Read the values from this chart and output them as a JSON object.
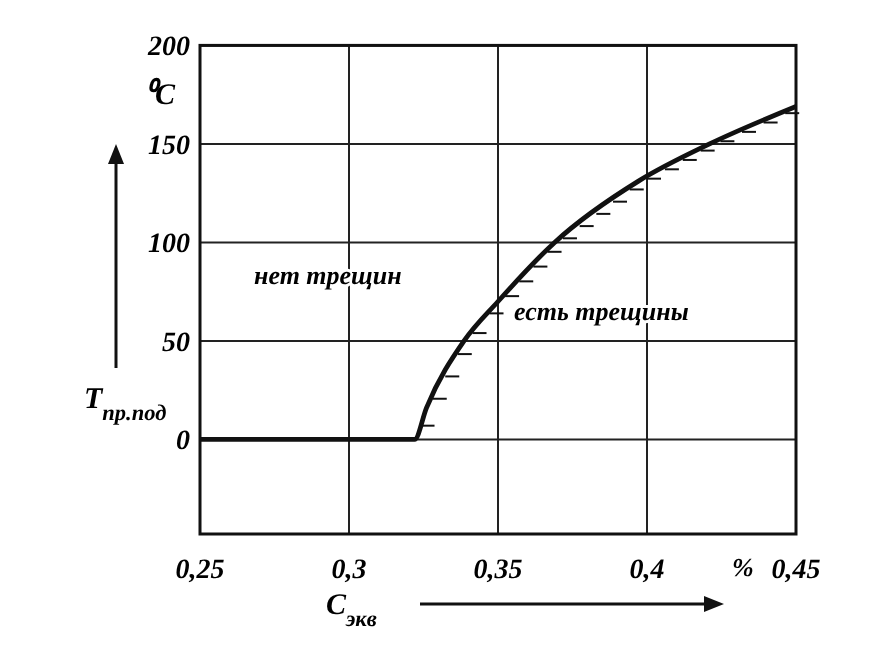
{
  "chart_data": {
    "type": "line",
    "xlabel": "C$_{экв}$",
    "ylabel": "T$_{пр.под}$",
    "x": [
      0.25,
      0.322,
      0.326,
      0.3386,
      0.35,
      0.369,
      0.397,
      0.421,
      0.45
    ],
    "series": [
      {
        "color": "#111111",
        "values": [
          0,
          0,
          16,
          50,
          70,
          100,
          131,
          150,
          169
        ]
      }
    ],
    "xlim": [
      0.25,
      0.45
    ],
    "ylim": [
      -48,
      200
    ],
    "xticks": [
      {
        "value": 0.25,
        "label": "0,25"
      },
      {
        "value": 0.3,
        "label": "0,3"
      },
      {
        "value": 0.35,
        "label": "0,35"
      },
      {
        "value": 0.4,
        "label": "0,4"
      },
      {
        "value": 0.45,
        "label": "0,45"
      }
    ],
    "yticks": [
      0,
      50,
      100,
      150,
      200
    ],
    "grid": true,
    "marker": "none",
    "line_style": "solid",
    "annotations": [
      "нет трещин",
      "есть трещины",
      "⁰C",
      "%"
    ]
  }
}
